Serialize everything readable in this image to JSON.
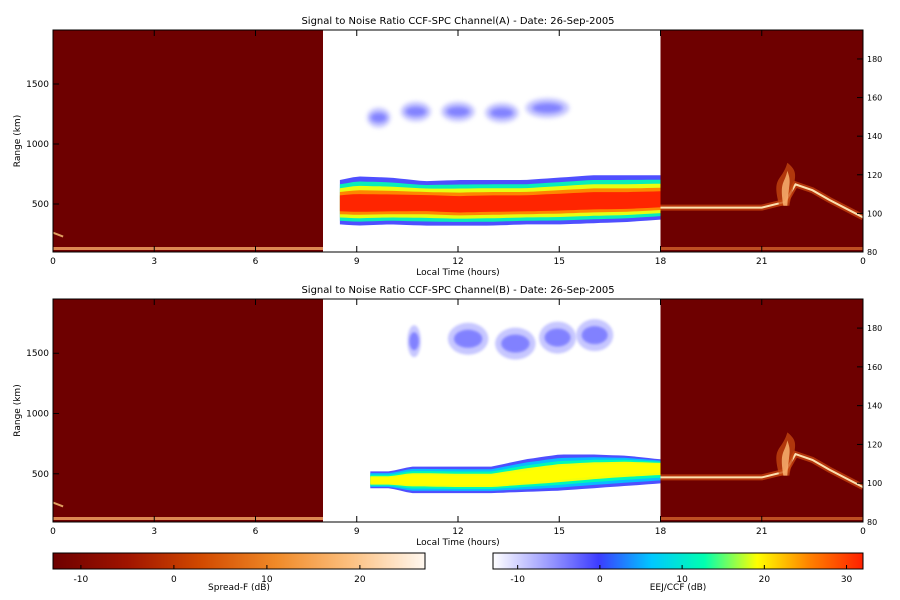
{
  "chart_data": [
    {
      "type": "heatmap",
      "title": "Signal to Noise Ratio CCF-SPC Channel(A) - Date: 26-Sep-2005",
      "xlabel": "Local Time (hours)",
      "ylabel": "Range (km)",
      "x_ticks": [
        "0",
        "3",
        "6",
        "9",
        "12",
        "15",
        "18",
        "21",
        "0"
      ],
      "xlim": [
        0,
        24
      ],
      "ylim": [
        100,
        1950
      ],
      "y_ticks": [
        "500",
        "1000",
        "1500"
      ],
      "y2_ticks": [
        "80",
        "100",
        "120",
        "140",
        "160",
        "180"
      ],
      "y2lim": [
        80,
        195
      ],
      "night_spreadF": {
        "evening": {
          "x": [
            18,
            20,
            21,
            21.7,
            22,
            22.5,
            23,
            24
          ],
          "y2": [
            103,
            103,
            103,
            106,
            115,
            112,
            107,
            98
          ]
        },
        "plume": {
          "x": 21.7,
          "y2_range": [
            106,
            120
          ]
        },
        "morning": {
          "x": [
            0,
            0.3
          ],
          "y2": [
            90,
            88
          ]
        }
      },
      "day_echoes": {
        "eej_band": {
          "x": [
            8.5,
            9,
            10,
            11,
            12,
            13,
            14,
            15,
            16,
            17,
            18
          ],
          "center_km": [
            500,
            500,
            500,
            510,
            490,
            500,
            500,
            510,
            520,
            520,
            530
          ],
          "top_km": [
            700,
            730,
            720,
            690,
            700,
            700,
            700,
            720,
            740,
            740,
            740
          ],
          "bottom_km": [
            330,
            320,
            330,
            320,
            320,
            320,
            330,
            330,
            340,
            350,
            370
          ],
          "peak_db": [
            28,
            30,
            30,
            28,
            30,
            28,
            28,
            29,
            30,
            30,
            28
          ]
        },
        "ccf_patches": [
          {
            "x": [
              9.3,
              10.0
            ],
            "center_km": 1220
          },
          {
            "x": [
              10.3,
              11.2
            ],
            "center_km": 1270
          },
          {
            "x": [
              11.5,
              12.5
            ],
            "center_km": 1270
          },
          {
            "x": [
              12.8,
              13.8
            ],
            "center_km": 1260
          },
          {
            "x": [
              14.0,
              15.3
            ],
            "center_km": 1300
          }
        ]
      }
    },
    {
      "type": "heatmap",
      "title": "Signal to Noise Ratio CCF-SPC Channel(B) - Date: 26-Sep-2005",
      "xlabel": "Local Time (hours)",
      "ylabel": "Range (km)",
      "x_ticks": [
        "0",
        "3",
        "6",
        "9",
        "12",
        "15",
        "18",
        "21",
        "0"
      ],
      "xlim": [
        0,
        24
      ],
      "ylim": [
        100,
        1950
      ],
      "y_ticks": [
        "500",
        "1000",
        "1500"
      ],
      "y2_ticks": [
        "80",
        "100",
        "120",
        "140",
        "160",
        "180"
      ],
      "y2lim": [
        80,
        195
      ],
      "night_spreadF": {
        "evening": {
          "x": [
            18,
            20,
            21,
            21.7,
            22,
            22.5,
            23,
            24
          ],
          "y2": [
            103,
            103,
            103,
            106,
            115,
            112,
            107,
            98
          ]
        },
        "plume": {
          "x": 21.7,
          "y2_range": [
            106,
            120
          ]
        },
        "morning": {
          "x": [
            0,
            0.3
          ],
          "y2": [
            90,
            88
          ]
        }
      },
      "day_echoes": {
        "eej_band": {
          "x": [
            9.4,
            10,
            10.6,
            11,
            12,
            13,
            14,
            15,
            16,
            17,
            18
          ],
          "center_km": [
            440,
            440,
            450,
            450,
            440,
            440,
            470,
            500,
            530,
            550,
            560
          ],
          "top_km": [
            520,
            520,
            560,
            560,
            560,
            560,
            620,
            660,
            660,
            650,
            620
          ],
          "bottom_km": [
            380,
            380,
            340,
            340,
            340,
            340,
            350,
            360,
            380,
            400,
            420
          ],
          "peak_db": [
            12,
            12,
            20,
            22,
            22,
            22,
            20,
            18,
            16,
            14,
            14
          ]
        },
        "ccf_patches": [
          {
            "x": [
              10.5,
              10.9
            ],
            "center_km": 1600
          },
          {
            "x": [
              11.7,
              12.9
            ],
            "center_km": 1620
          },
          {
            "x": [
              13.1,
              14.3
            ],
            "center_km": 1580
          },
          {
            "x": [
              14.4,
              15.5
            ],
            "center_km": 1630
          },
          {
            "x": [
              15.5,
              16.6
            ],
            "center_km": 1650
          }
        ]
      }
    }
  ],
  "colorbars": [
    {
      "label": "Spread-F (dB)",
      "ticks": [
        "-10",
        "0",
        "10",
        "20"
      ],
      "range": [
        -13,
        27
      ]
    },
    {
      "label": "EEJ/CCF (dB)",
      "ticks": [
        "-10",
        "0",
        "10",
        "20",
        "30"
      ],
      "range": [
        -13,
        32
      ]
    }
  ],
  "colors": {
    "night_background": "#6e0000",
    "spreadF_scale": [
      "#6e0000",
      "#a01400",
      "#d24a00",
      "#f08a28",
      "#fcc080",
      "#fff8f0"
    ],
    "eej_scale": [
      "#ffffff",
      "#a0a0ff",
      "#3c3cff",
      "#00c8ff",
      "#00ffb0",
      "#ffff00",
      "#ff8000",
      "#ff2000"
    ]
  }
}
